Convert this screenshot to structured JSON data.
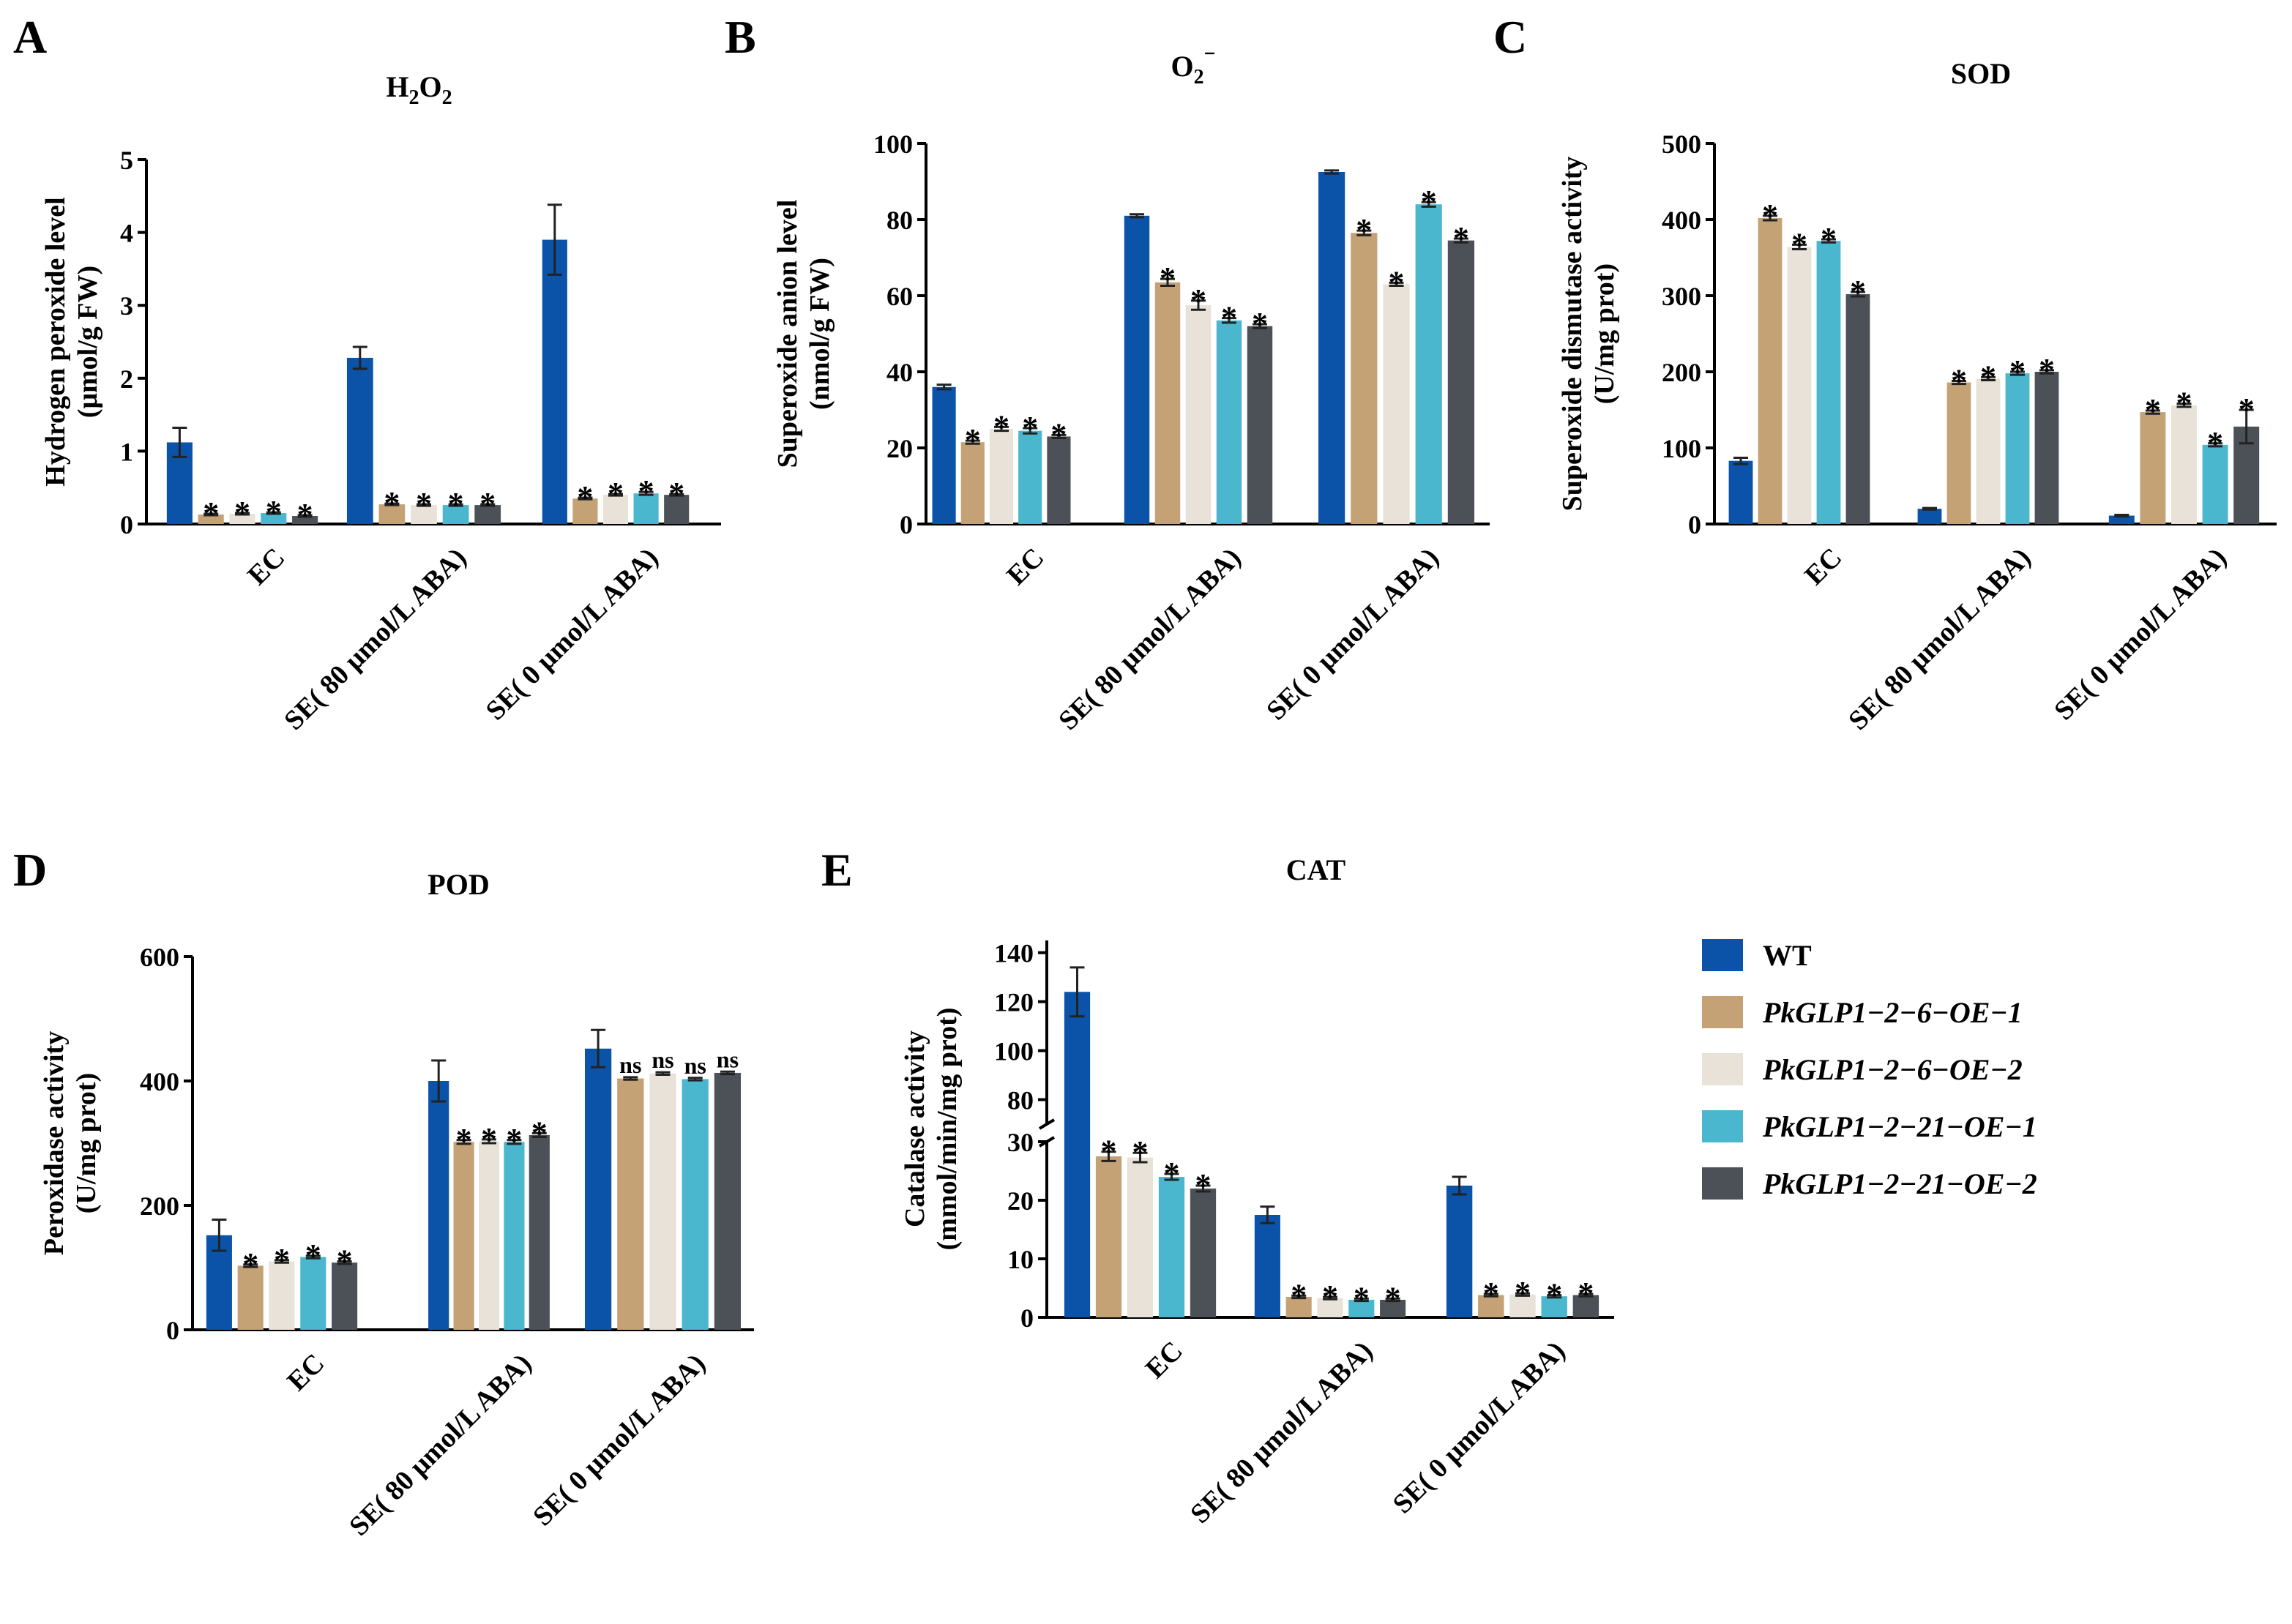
{
  "legend": {
    "items": [
      {
        "label": "WT",
        "italic": false
      },
      {
        "label": "PkGLP1−2−6−OE−1",
        "italic": true
      },
      {
        "label": "PkGLP1−2−6−OE−2",
        "italic": true
      },
      {
        "label": "PkGLP1−2−21−OE−1",
        "italic": true
      },
      {
        "label": "PkGLP1−2−21−OE−2",
        "italic": true
      }
    ]
  },
  "colors": [
    "#0a53a8",
    "#c4a276",
    "#e8e2d8",
    "#4ab7ce",
    "#4b5157"
  ],
  "chart_data": [
    {
      "letter": "A",
      "type": "bar",
      "title": "H2O2",
      "title_parts": [
        {
          "t": "H"
        },
        {
          "t": "2",
          "sub": true
        },
        {
          "t": "O"
        },
        {
          "t": "2",
          "sub": true
        }
      ],
      "ylabel": [
        "Hydrogen peroxide level",
        "(μmol/g FW)"
      ],
      "ylim": [
        0,
        5
      ],
      "yticks": [
        0,
        1,
        2,
        3,
        4,
        5
      ],
      "categories": [
        "EC",
        "SE( 80 μmol/L ABA)",
        "SE( 0 μmol/L ABA)"
      ],
      "series": [
        {
          "name": "WT",
          "values": [
            1.12,
            2.28,
            3.9
          ],
          "errors": [
            0.2,
            0.15,
            0.48
          ],
          "sig": [
            "",
            "",
            ""
          ]
        },
        {
          "name": "PkGLP1−2−6−OE−1",
          "values": [
            0.13,
            0.27,
            0.35
          ],
          "errors": [
            0.01,
            0.01,
            0.01
          ],
          "sig": [
            "*",
            "*",
            "*"
          ]
        },
        {
          "name": "PkGLP1−2−6−OE−2",
          "values": [
            0.14,
            0.26,
            0.4
          ],
          "errors": [
            0.01,
            0.01,
            0.01
          ],
          "sig": [
            "*",
            "*",
            "*"
          ]
        },
        {
          "name": "PkGLP1−2−21−OE−1",
          "values": [
            0.15,
            0.26,
            0.42
          ],
          "errors": [
            0.01,
            0.01,
            0.02
          ],
          "sig": [
            "*",
            "*",
            "*"
          ]
        },
        {
          "name": "PkGLP1−2−21−OE−2",
          "values": [
            0.11,
            0.26,
            0.4
          ],
          "errors": [
            0.01,
            0.01,
            0.01
          ],
          "sig": [
            "*",
            "*",
            "*"
          ]
        }
      ]
    },
    {
      "letter": "B",
      "type": "bar",
      "title": "O2⁻",
      "title_parts": [
        {
          "t": "O"
        },
        {
          "t": "2",
          "sub": true
        },
        {
          "t": "⁻",
          "sup": true
        }
      ],
      "ylabel": [
        "Superoxide anion level",
        "(nmol/g FW)"
      ],
      "ylim": [
        0,
        100
      ],
      "yticks": [
        0,
        20,
        40,
        60,
        80,
        100
      ],
      "categories": [
        "EC",
        "SE( 80 μmol/L ABA)",
        "SE( 0 μmol/L ABA)"
      ],
      "series": [
        {
          "name": "WT",
          "values": [
            36,
            81,
            92.5
          ],
          "errors": [
            0.6,
            0.4,
            0.4
          ],
          "sig": [
            "",
            "",
            ""
          ]
        },
        {
          "name": "PkGLP1−2−6−OE−1",
          "values": [
            21.5,
            63.5,
            76.5
          ],
          "errors": [
            0.4,
            0.9,
            0.6
          ],
          "sig": [
            "*",
            "*",
            "*"
          ]
        },
        {
          "name": "PkGLP1−2−6−OE−2",
          "values": [
            25,
            57.5,
            63
          ],
          "errors": [
            0.5,
            1.2,
            0.4
          ],
          "sig": [
            "*",
            "*",
            "*"
          ]
        },
        {
          "name": "PkGLP1−2−21−OE−1",
          "values": [
            24.5,
            53.5,
            84
          ],
          "errors": [
            0.7,
            0.6,
            0.6
          ],
          "sig": [
            "*",
            "*",
            "*"
          ]
        },
        {
          "name": "PkGLP1−2−21−OE−2",
          "values": [
            23,
            52,
            74.5
          ],
          "errors": [
            0.4,
            0.5,
            0.5
          ],
          "sig": [
            "*",
            "*",
            "*"
          ]
        }
      ]
    },
    {
      "letter": "C",
      "type": "bar",
      "title": "SOD",
      "title_parts": [
        {
          "t": "SOD"
        }
      ],
      "ylabel": [
        "Superoxide dismutase activity",
        "(U/mg prot)"
      ],
      "ylim": [
        0,
        500
      ],
      "yticks": [
        0,
        100,
        200,
        300,
        400,
        500
      ],
      "categories": [
        "EC",
        "SE( 80 μmol/L ABA)",
        "SE( 0 μmol/L ABA)"
      ],
      "series": [
        {
          "name": "WT",
          "values": [
            83,
            20,
            11
          ],
          "errors": [
            4,
            1,
            1
          ],
          "sig": [
            "",
            "",
            ""
          ]
        },
        {
          "name": "PkGLP1−2−6−OE−1",
          "values": [
            402,
            186,
            147
          ],
          "errors": [
            3,
            2,
            2
          ],
          "sig": [
            "*",
            "*",
            "*"
          ]
        },
        {
          "name": "PkGLP1−2−6−OE−2",
          "values": [
            364,
            191,
            156
          ],
          "errors": [
            3,
            2,
            2
          ],
          "sig": [
            "*",
            "*",
            "*"
          ]
        },
        {
          "name": "PkGLP1−2−21−OE−1",
          "values": [
            372,
            198,
            104
          ],
          "errors": [
            2,
            2,
            2
          ],
          "sig": [
            "*",
            "*",
            "*"
          ]
        },
        {
          "name": "PkGLP1−2−21−OE−2",
          "values": [
            302,
            200,
            128
          ],
          "errors": [
            3,
            2,
            22
          ],
          "sig": [
            "*",
            "*",
            "*"
          ]
        }
      ]
    },
    {
      "letter": "D",
      "type": "bar",
      "title": "POD",
      "title_parts": [
        {
          "t": "POD"
        }
      ],
      "ylabel": [
        "Peroxidase activity",
        "(U/mg prot)"
      ],
      "ylim": [
        0,
        600
      ],
      "yticks": [
        0,
        200,
        400,
        600
      ],
      "categories": [
        "EC",
        "SE( 80 μmol/L ABA)",
        "SE( 0 μmol/L ABA)"
      ],
      "series": [
        {
          "name": "WT",
          "values": [
            152,
            400,
            452
          ],
          "errors": [
            25,
            33,
            30
          ],
          "sig": [
            "",
            "",
            ""
          ]
        },
        {
          "name": "PkGLP1−2−6−OE−1",
          "values": [
            103,
            302,
            404
          ],
          "errors": [
            2,
            3,
            2
          ],
          "sig": [
            "*",
            "*",
            "ns"
          ]
        },
        {
          "name": "PkGLP1−2−6−OE−2",
          "values": [
            110,
            303,
            412
          ],
          "errors": [
            2,
            3,
            2
          ],
          "sig": [
            "*",
            "*",
            "ns"
          ]
        },
        {
          "name": "PkGLP1−2−21−OE−1",
          "values": [
            117,
            302,
            403
          ],
          "errors": [
            2,
            3,
            2
          ],
          "sig": [
            "*",
            "*",
            "ns"
          ]
        },
        {
          "name": "PkGLP1−2−21−OE−2",
          "values": [
            108,
            313,
            413
          ],
          "errors": [
            2,
            3,
            2
          ],
          "sig": [
            "*",
            "*",
            "ns"
          ]
        }
      ]
    },
    {
      "letter": "E",
      "type": "bar",
      "title": "CAT",
      "title_parts": [
        {
          "t": "CAT"
        }
      ],
      "ylabel": [
        "Catalase activity",
        "(mmol/min/mg prot)"
      ],
      "axis_break": {
        "lower": [
          0,
          30
        ],
        "upper": [
          70,
          145
        ]
      },
      "yticks_lower": [
        0,
        10,
        20,
        30
      ],
      "yticks_upper": [
        80,
        100,
        120,
        140
      ],
      "categories": [
        "EC",
        "SE( 80 μmol/L ABA)",
        "SE( 0 μmol/L ABA)"
      ],
      "series": [
        {
          "name": "WT",
          "values": [
            124,
            17.5,
            22.5
          ],
          "errors": [
            10,
            1.4,
            1.5
          ],
          "sig": [
            "",
            "",
            ""
          ]
        },
        {
          "name": "PkGLP1−2−6−OE−1",
          "values": [
            27.5,
            3.5,
            3.8
          ],
          "errors": [
            0.8,
            0.2,
            0.2
          ],
          "sig": [
            "*",
            "*",
            "*"
          ]
        },
        {
          "name": "PkGLP1−2−6−OE−2",
          "values": [
            27.3,
            3.3,
            3.9
          ],
          "errors": [
            0.8,
            0.2,
            0.2
          ],
          "sig": [
            "*",
            "*",
            "*"
          ]
        },
        {
          "name": "PkGLP1−2−21−OE−1",
          "values": [
            24,
            3.0,
            3.6
          ],
          "errors": [
            0.5,
            0.2,
            0.2
          ],
          "sig": [
            "*",
            "*",
            "*"
          ]
        },
        {
          "name": "PkGLP1−2−21−OE−2",
          "values": [
            22,
            3.0,
            3.8
          ],
          "errors": [
            0.5,
            0.2,
            0.2
          ],
          "sig": [
            "*",
            "*",
            "*"
          ]
        }
      ]
    }
  ]
}
